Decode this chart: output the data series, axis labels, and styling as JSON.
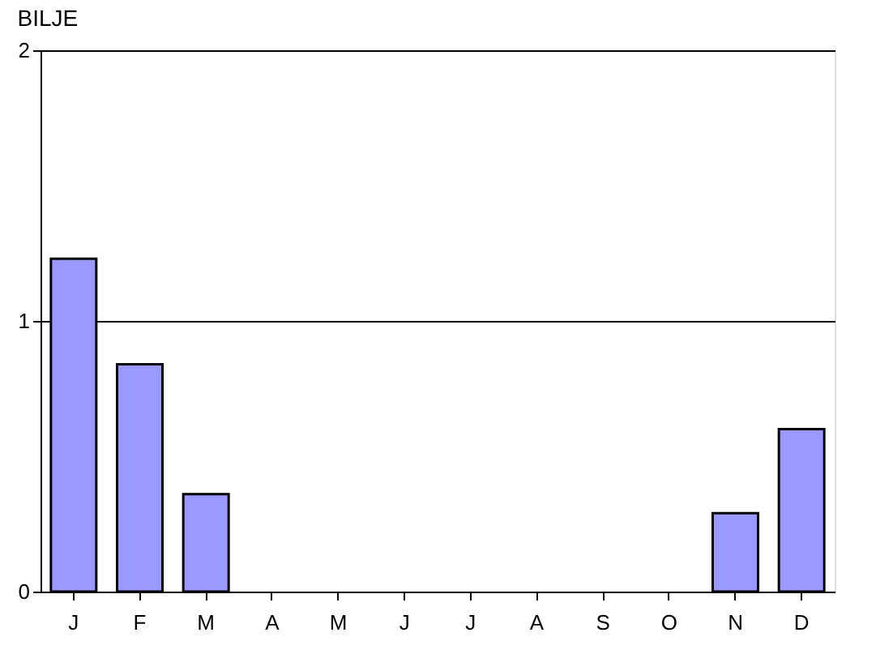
{
  "chart_data": {
    "type": "bar",
    "title": "BILJE",
    "categories": [
      "J",
      "F",
      "M",
      "A",
      "M",
      "J",
      "J",
      "A",
      "S",
      "O",
      "N",
      "D"
    ],
    "values": [
      1.23,
      0.84,
      0.36,
      null,
      null,
      null,
      null,
      null,
      null,
      null,
      0.29,
      0.6
    ],
    "color": "#9999ff",
    "ylim": [
      0,
      2
    ],
    "yticks": [
      0,
      1,
      2
    ],
    "grid": "y"
  }
}
